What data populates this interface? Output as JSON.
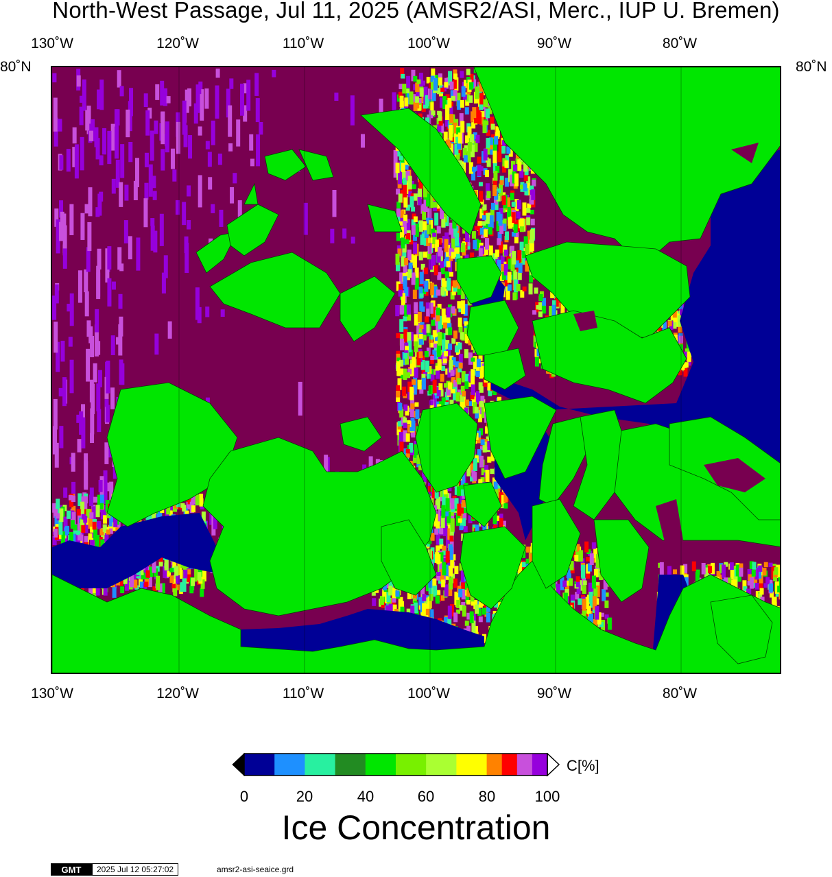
{
  "title": "North-West Passage, Jul 11, 2025 (AMSR2/ASI, Merc., IUP U. Bremen)",
  "map": {
    "lon_labels": [
      "130˚W",
      "120˚W",
      "110˚W",
      "100˚W",
      "90˚W",
      "80˚W"
    ],
    "lat_labels": [
      "80˚N",
      "80˚N"
    ],
    "colors": {
      "land": "#00e600",
      "pack_ice": "#780050",
      "open_water": "#000096",
      "ice_95": "#9600dc",
      "ice_90": "#c850dc"
    }
  },
  "colorbar": {
    "ticks": [
      "0",
      "20",
      "40",
      "60",
      "80",
      "100"
    ],
    "unit": "C[%]",
    "label": "Ice Concentration",
    "colors": [
      "#000096",
      "#1e90ff",
      "#28f0a0",
      "#228b22",
      "#00e600",
      "#78f000",
      "#aaff32",
      "#ffff00",
      "#ff8200",
      "#ff0000",
      "#c850dc",
      "#9600dc"
    ]
  },
  "footer": {
    "logo": "GMT",
    "timestamp": "2025 Jul 12 05:27:02",
    "filename": "amsr2-asi-seaice.grd"
  }
}
